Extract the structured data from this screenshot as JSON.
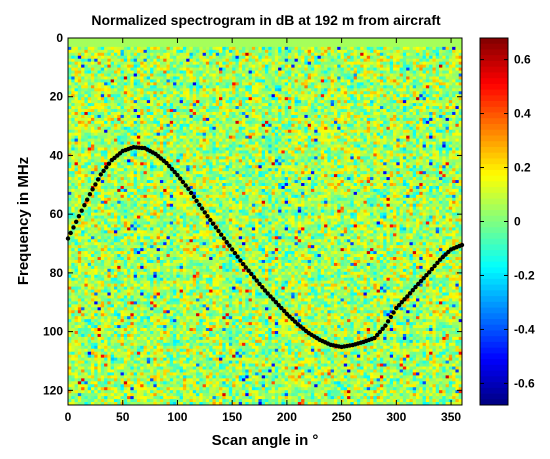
{
  "chart_data": {
    "type": "heatmap",
    "title": "Normalized  spectrogram in dB at 192 m from aircraft",
    "xlabel": "Scan angle in °",
    "ylabel": "Frequency in MHz",
    "xlim": [
      0,
      360
    ],
    "ylim": [
      0,
      125
    ],
    "y_inverted": true,
    "x_ticks": [
      0,
      50,
      100,
      150,
      200,
      250,
      300,
      350
    ],
    "y_ticks": [
      0,
      20,
      40,
      60,
      80,
      100,
      120
    ],
    "colorbar": {
      "colormap": "jet",
      "range": [
        -0.68,
        0.68
      ],
      "ticks": [
        0.6,
        0.4,
        0.2,
        0,
        -0.2,
        -0.4,
        -0.6
      ]
    },
    "field": {
      "description_values": "random noise field of normalized dB values, mostly between -0.2 and 0.3"
    },
    "overlay_series": {
      "type": "scatter",
      "color": "#000000",
      "x": [
        0,
        10,
        20,
        30,
        40,
        50,
        60,
        70,
        80,
        90,
        100,
        110,
        120,
        130,
        140,
        150,
        160,
        170,
        180,
        190,
        200,
        210,
        220,
        230,
        240,
        250,
        260,
        270,
        280,
        290,
        300,
        310,
        320,
        330,
        340,
        350,
        360
      ],
      "y": [
        68.3,
        60.7,
        53.2,
        46.5,
        41.6,
        38.5,
        37.2,
        37.5,
        39.5,
        42.6,
        46.7,
        51.4,
        56.8,
        62.0,
        67.0,
        72.0,
        77.0,
        81.5,
        86.0,
        90.0,
        94.0,
        97.5,
        100.5,
        102.8,
        104.5,
        105.2,
        104.6,
        103.5,
        102.2,
        98.0,
        92.0,
        88.0,
        83.8,
        79.8,
        75.5,
        72.0,
        70.5
      ]
    }
  }
}
